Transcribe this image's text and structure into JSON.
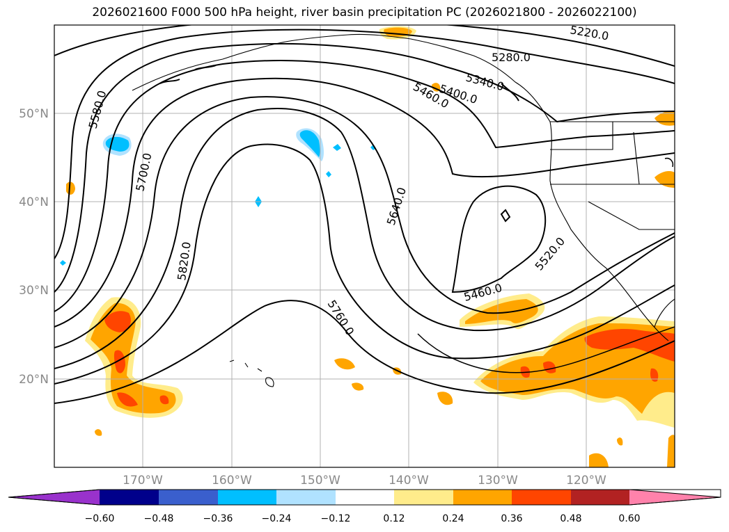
{
  "title": "2026021600 F000 500 hPa height, river basin precipitation PC (2026021800 - 2026022100)",
  "map": {
    "lat_labels": [
      "50°N",
      "40°N",
      "30°N",
      "20°N"
    ],
    "lon_labels": [
      "170°W",
      "160°W",
      "150°W",
      "140°W",
      "130°W",
      "120°W"
    ],
    "contour_labels": [
      "5220.0",
      "5280.0",
      "5340.0",
      "5400.0",
      "5460.0",
      "5580.0",
      "5700.0",
      "5820.0",
      "5640.0",
      "5460.0",
      "5520.0",
      "5760.0"
    ]
  },
  "colorbar": {
    "ticks": [
      "−0.60",
      "−0.48",
      "−0.36",
      "−0.24",
      "−0.12",
      "0.12",
      "0.24",
      "0.36",
      "0.48",
      "0.60"
    ],
    "colors": [
      "#9932cc",
      "#00008b",
      "#3a5fcd",
      "#00bfff",
      "#b0e2ff",
      "#ffffff",
      "#ffec8b",
      "#ffa500",
      "#ff4500",
      "#b22222",
      "#ff82ab",
      "#ff82ab"
    ]
  }
}
